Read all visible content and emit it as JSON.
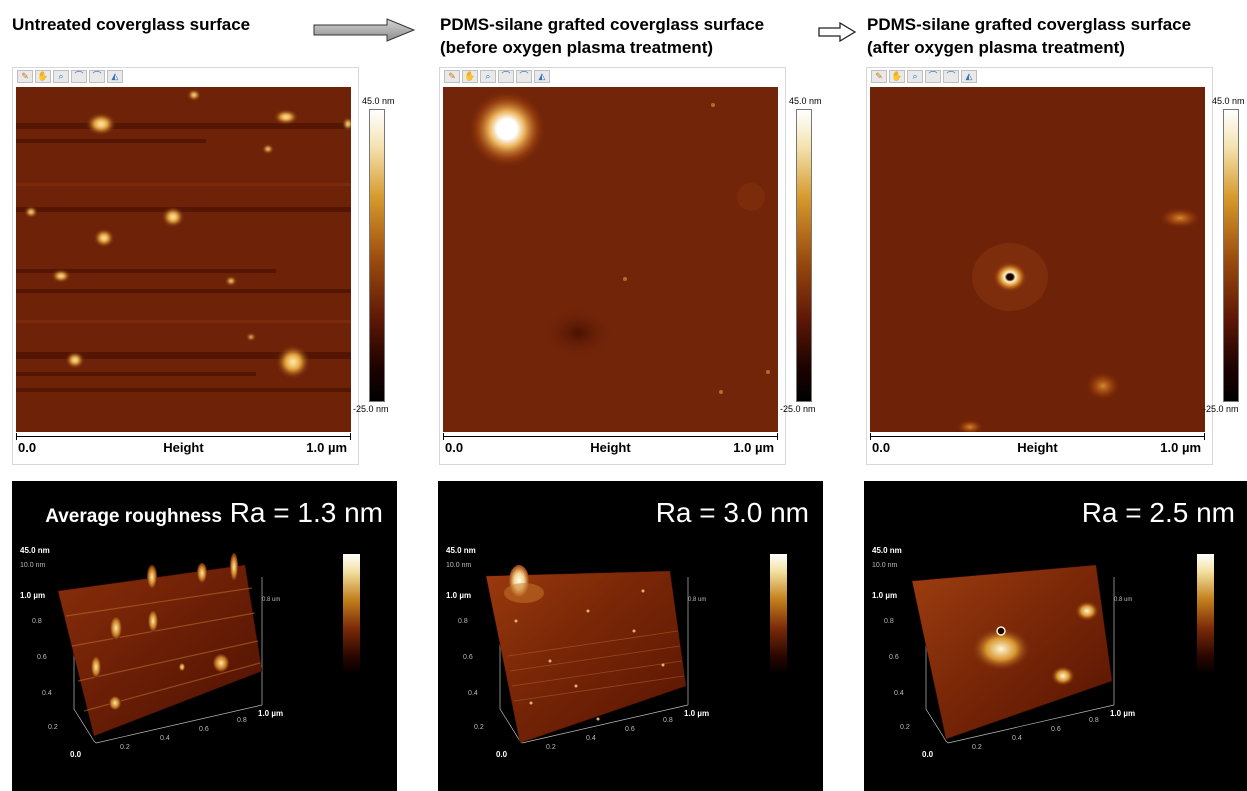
{
  "captions": {
    "left": "Untreated coverglass surface",
    "middle": [
      "PDMS-silane grafted coverglass surface",
      "(before oxygen plasma treatment)"
    ],
    "right": [
      "PDMS-silane grafted coverglass surface",
      "(after oxygen plasma treatment)"
    ]
  },
  "height_map": {
    "colorbar_max": "45.0 nm",
    "colorbar_min": "-25.0 nm",
    "axis_start": "0.0",
    "axis_label": "Height",
    "axis_end": "1.0 µm"
  },
  "view3d": {
    "z_top": "45.0 nm",
    "z_second": "10.0 nm",
    "y_max": "1.0 µm",
    "y_ticks": [
      "0.8",
      "0.6",
      "0.4",
      "0.2"
    ],
    "x_origin": "0.0",
    "x_ticks": [
      "0.2",
      "0.4",
      "0.6",
      "0.8"
    ],
    "x_max": "1.0 µm",
    "right_axis_top": "0.8 um"
  },
  "roughness": {
    "lead": "Average roughness",
    "left": "Ra = 1.3 nm",
    "middle": "Ra = 3.0 nm",
    "right": "Ra = 2.5 nm"
  },
  "colors": {
    "afm_low": "#3e0a00",
    "afm_mid": "#7a2608",
    "afm_high": "#ffffff",
    "background_3d": "#000000"
  }
}
